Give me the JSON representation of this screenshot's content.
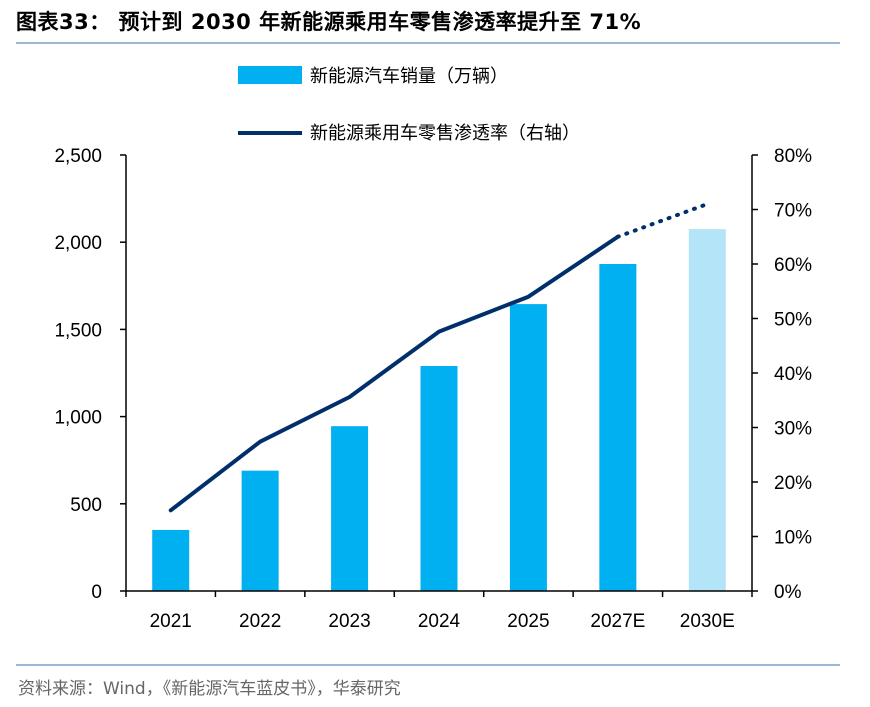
{
  "title": "图表33： 预计到 2030 年新能源乘用车零售渗透率提升至 71%",
  "source": "资料来源：Wind，《新能源汽车蓝皮书》，华泰研究",
  "colors": {
    "bar": "#00b0f0",
    "bar_estimate": "#b4e4f8",
    "line": "#002f6c",
    "axis": "#000000",
    "rule": "#9bb7d4"
  },
  "chart_data": {
    "type": "bar",
    "categories": [
      "2021",
      "2022",
      "2023",
      "2024",
      "2025",
      "2027E",
      "2030E"
    ],
    "series": [
      {
        "name": "新能源汽车销量（万辆）",
        "type": "bar",
        "axis": "left",
        "values": [
          350,
          690,
          945,
          1290,
          1645,
          1875,
          2075
        ]
      },
      {
        "name": "新能源乘用车零售渗透率（右轴）",
        "type": "line",
        "axis": "right",
        "values": [
          0.148,
          0.274,
          0.356,
          0.476,
          0.54,
          0.65,
          0.71
        ],
        "dashed_from_index": 5
      }
    ],
    "y_left": {
      "ylim": [
        0,
        2500
      ],
      "ticks": [
        "0",
        "500",
        "1,000",
        "1,500",
        "2,000",
        "2,500"
      ]
    },
    "y_right": {
      "ylim": [
        0,
        0.8
      ],
      "ticks": [
        "0%",
        "10%",
        "20%",
        "30%",
        "40%",
        "50%",
        "60%",
        "70%",
        "80%"
      ]
    },
    "grid": false,
    "legend_position": "top"
  }
}
